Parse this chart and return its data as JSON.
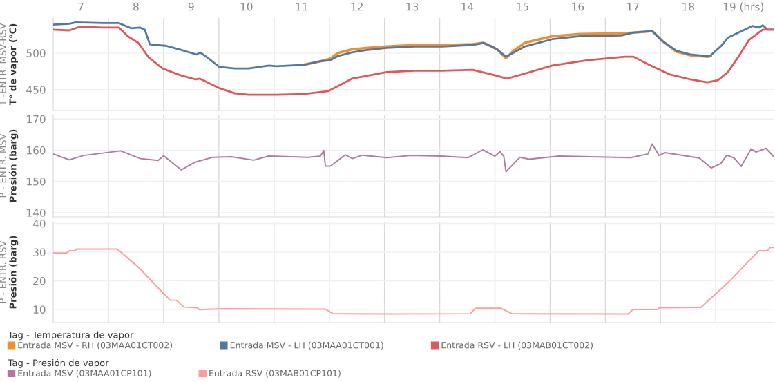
{
  "chart_data": [
    {
      "type": "line",
      "ylabel": "T -ENTR. MSV-RSV\nT° de vapor (°C)",
      "legend_title": "Tag - Temperatura de vapor",
      "legend": "bottom",
      "grid": "y",
      "tick_labels": "xy",
      "xlim": [
        7,
        20.06
      ],
      "xticks": [
        {
          "value": 7.5,
          "label": "7"
        },
        {
          "value": 8.5,
          "label": "8"
        },
        {
          "value": 9.5,
          "label": "9"
        },
        {
          "value": 10.5,
          "label": "10"
        },
        {
          "value": 11.5,
          "label": "11"
        },
        {
          "value": 12.5,
          "label": "12"
        },
        {
          "value": 13.5,
          "label": "13"
        },
        {
          "value": 14.5,
          "label": "14"
        },
        {
          "value": 15.5,
          "label": "15"
        },
        {
          "value": 16.5,
          "label": "16"
        },
        {
          "value": 17.5,
          "label": "17"
        },
        {
          "value": 18.5,
          "label": "18"
        },
        {
          "value": 19.5,
          "label": "19 (hrs)"
        }
      ],
      "ylim": [
        421.5,
        548
      ],
      "yticks": [
        450,
        500
      ],
      "ref_lines": [
        {
          "axis": "x",
          "value": 8,
          "color": "#d9d9d9"
        },
        {
          "axis": "x",
          "value": 9,
          "color": "#d9d9d9"
        },
        {
          "axis": "x",
          "value": 10,
          "color": "#d9d9d9"
        },
        {
          "axis": "x",
          "value": 11,
          "color": "#d9d9d9"
        },
        {
          "axis": "x",
          "value": 12,
          "color": "#d9d9d9"
        },
        {
          "axis": "x",
          "value": 13,
          "color": "#d9d9d9"
        },
        {
          "axis": "x",
          "value": 14,
          "color": "#d9d9d9"
        },
        {
          "axis": "x",
          "value": 15,
          "color": "#d9d9d9"
        },
        {
          "axis": "x",
          "value": 16,
          "color": "#d9d9d9"
        },
        {
          "axis": "x",
          "value": 17,
          "color": "#d9d9d9"
        },
        {
          "axis": "x",
          "value": 18,
          "color": "#d9d9d9"
        },
        {
          "axis": "x",
          "value": 19,
          "color": "#d9d9d9"
        }
      ],
      "series": [
        {
          "name": "Entrada MSV - RH (03MAA01CT002)",
          "color": "#f28e2b",
          "x": [
            11.54,
            11.85,
            12.01,
            12.16,
            12.41,
            12.66,
            13.04,
            13.54,
            14.04,
            14.6,
            14.79,
            14.94,
            15.04,
            15.2,
            15.35,
            15.54,
            16.04,
            16.54,
            17.29,
            17.51,
            17.85,
            18.04,
            18.29,
            18.54,
            18.85,
            18.91
          ],
          "values": [
            484,
            489,
            492,
            500,
            505,
            507,
            509,
            511,
            511,
            512,
            514,
            509,
            505,
            493,
            504,
            514,
            523,
            526,
            527,
            528,
            530,
            516,
            502,
            497,
            495,
            496
          ]
        },
        {
          "name": "Entrada MSV - LH (03MAA01CT001)",
          "color": "#4e79a7",
          "x": [
            7.0,
            7.29,
            7.41,
            7.91,
            8.19,
            8.41,
            8.57,
            8.66,
            8.75,
            8.85,
            9.04,
            9.29,
            9.6,
            9.66,
            9.79,
            10.01,
            10.29,
            10.54,
            10.91,
            11.04,
            11.54,
            11.85,
            12.01,
            12.16,
            12.41,
            12.66,
            13.04,
            13.54,
            14.04,
            14.6,
            14.79,
            14.94,
            15.04,
            15.2,
            15.35,
            15.54,
            16.04,
            16.54,
            17.29,
            17.51,
            17.85,
            18.04,
            18.29,
            18.54,
            18.85,
            18.91,
            19.1,
            19.22,
            19.41,
            19.66,
            19.79,
            19.85,
            19.94,
            20.06
          ],
          "values": [
            539,
            540,
            542,
            541,
            541,
            534,
            535,
            532,
            512,
            511,
            510,
            505,
            498,
            501,
            494,
            481,
            479,
            479,
            483,
            482,
            484,
            489,
            490,
            496,
            501,
            504,
            507,
            509,
            509,
            511,
            514,
            509,
            505,
            495,
            501,
            509,
            519,
            523,
            524,
            528,
            530,
            516,
            503,
            498,
            496,
            497,
            510,
            521,
            528,
            537,
            535,
            538,
            532,
            532
          ]
        },
        {
          "name": "Entrada RSV - LH (03MAB01CT002)",
          "color": "#e15759",
          "x": [
            7.0,
            7.29,
            7.48,
            7.91,
            8.19,
            8.35,
            8.54,
            8.73,
            8.98,
            9.29,
            9.58,
            9.66,
            10.01,
            10.29,
            10.54,
            11.04,
            11.54,
            11.98,
            12.41,
            13.04,
            13.54,
            14.04,
            14.6,
            14.98,
            15.22,
            15.54,
            16.04,
            16.66,
            17.35,
            17.51,
            17.79,
            18.16,
            18.54,
            18.85,
            19.04,
            19.22,
            19.41,
            19.6,
            19.85,
            20.06
          ],
          "values": [
            532,
            531,
            536,
            535,
            535,
            523,
            514,
            494,
            479,
            470,
            464,
            465,
            452,
            445,
            443,
            443,
            444,
            448,
            465,
            474,
            476,
            476,
            477,
            470,
            465,
            472,
            483,
            490,
            495,
            495,
            484,
            471,
            464,
            460,
            463,
            474,
            495,
            518,
            532,
            532
          ]
        }
      ]
    },
    {
      "type": "line",
      "ylabel": "P - ENTR. MSV\nPresión (barg)",
      "legend_title": "Tag - Presión de vapor",
      "legend": "bottom",
      "grid": "y",
      "tick_labels": "y",
      "xlim": [
        7,
        20.06
      ],
      "ylim": [
        138.6,
        171.4
      ],
      "yticks": [
        140,
        150,
        160,
        170
      ],
      "ref_lines": [
        {
          "axis": "x",
          "value": 8,
          "color": "#d9d9d9"
        },
        {
          "axis": "x",
          "value": 9,
          "color": "#d9d9d9"
        },
        {
          "axis": "x",
          "value": 10,
          "color": "#d9d9d9"
        },
        {
          "axis": "x",
          "value": 11,
          "color": "#d9d9d9"
        },
        {
          "axis": "x",
          "value": 12,
          "color": "#d9d9d9"
        },
        {
          "axis": "x",
          "value": 13,
          "color": "#d9d9d9"
        },
        {
          "axis": "x",
          "value": 14,
          "color": "#d9d9d9"
        },
        {
          "axis": "x",
          "value": 15,
          "color": "#d9d9d9"
        },
        {
          "axis": "x",
          "value": 16,
          "color": "#d9d9d9"
        },
        {
          "axis": "x",
          "value": 17,
          "color": "#d9d9d9"
        },
        {
          "axis": "x",
          "value": 18,
          "color": "#d9d9d9"
        },
        {
          "axis": "x",
          "value": 19,
          "color": "#d9d9d9"
        }
      ],
      "series": [
        {
          "name": "Entrada MSV (03MAA01CP101)",
          "color": "#b07aa1",
          "x": [
            7.0,
            7.29,
            7.55,
            8.22,
            8.58,
            8.9,
            9.0,
            9.32,
            9.56,
            9.88,
            10.23,
            10.63,
            10.9,
            11.62,
            11.84,
            11.9,
            11.93,
            12.02,
            12.29,
            12.42,
            12.6,
            13.04,
            13.48,
            14.02,
            14.51,
            14.78,
            15.0,
            15.09,
            15.16,
            15.2,
            15.45,
            15.62,
            16.16,
            17.46,
            17.77,
            17.85,
            17.97,
            18.08,
            18.7,
            18.92,
            19.09,
            19.2,
            19.33,
            19.46,
            19.64,
            19.73,
            19.91,
            20.04
          ],
          "values": [
            158.8,
            156.9,
            158.3,
            159.8,
            157.3,
            156.7,
            158.2,
            153.7,
            156.1,
            157.7,
            157.9,
            156.8,
            158.1,
            157.7,
            158.1,
            159.9,
            154.9,
            154.9,
            158.5,
            157.3,
            158.4,
            157.6,
            158.3,
            158.1,
            157.6,
            160.1,
            158.1,
            159.5,
            158.1,
            153.1,
            157.7,
            157.1,
            158.1,
            157.6,
            158.8,
            162.0,
            158.3,
            159.2,
            157.5,
            154.3,
            155.7,
            158.4,
            157.5,
            154.8,
            160.4,
            159.4,
            160.6,
            158.1
          ]
        }
      ]
    },
    {
      "type": "line",
      "ylabel": "P - ENTR. RSV\nPresión (barg)",
      "legend": "bottom",
      "grid": "y",
      "tick_labels": "y",
      "xlim": [
        7,
        20.06
      ],
      "ylim": [
        5.4,
        40.6
      ],
      "yticks": [
        10,
        20,
        30,
        40
      ],
      "ref_lines": [
        {
          "axis": "x",
          "value": 8,
          "color": "#d9d9d9"
        },
        {
          "axis": "x",
          "value": 9,
          "color": "#d9d9d9"
        },
        {
          "axis": "x",
          "value": 10,
          "color": "#d9d9d9"
        },
        {
          "axis": "x",
          "value": 11,
          "color": "#d9d9d9"
        },
        {
          "axis": "x",
          "value": 12,
          "color": "#d9d9d9"
        },
        {
          "axis": "x",
          "value": 13,
          "color": "#d9d9d9"
        },
        {
          "axis": "x",
          "value": 14,
          "color": "#d9d9d9"
        },
        {
          "axis": "x",
          "value": 15,
          "color": "#d9d9d9"
        },
        {
          "axis": "x",
          "value": 16,
          "color": "#d9d9d9"
        },
        {
          "axis": "x",
          "value": 17,
          "color": "#d9d9d9"
        },
        {
          "axis": "x",
          "value": 18,
          "color": "#d9d9d9"
        },
        {
          "axis": "x",
          "value": 19,
          "color": "#d9d9d9"
        }
      ],
      "series": [
        {
          "name": "Entrada RSV (03MAB01CP101)",
          "color": "#ff9d9a",
          "x": [
            7.0,
            7.24,
            7.29,
            7.4,
            7.42,
            8.16,
            8.54,
            8.72,
            9.0,
            9.12,
            9.23,
            9.37,
            9.61,
            9.65,
            10.05,
            11.93,
            12.07,
            13.04,
            14.55,
            14.65,
            15.11,
            15.31,
            17.41,
            17.5,
            17.95,
            17.98,
            18.73,
            19.24,
            19.78,
            19.94,
            19.98,
            20.04
          ],
          "values": [
            29.7,
            29.7,
            30.5,
            30.5,
            31.1,
            31.1,
            24.8,
            21.2,
            15.5,
            13.2,
            13.2,
            10.8,
            10.6,
            9.9,
            10.2,
            10.1,
            8.5,
            8.4,
            8.5,
            10.4,
            10.4,
            8.5,
            8.4,
            10.0,
            10.0,
            10.6,
            10.7,
            19.7,
            30.5,
            30.5,
            31.6,
            31.6
          ]
        }
      ]
    }
  ]
}
